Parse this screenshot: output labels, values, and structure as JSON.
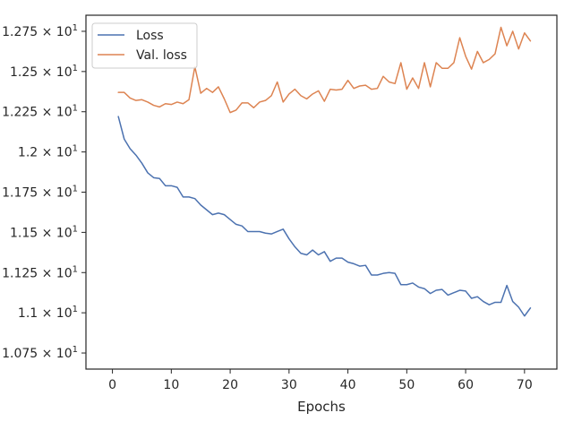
{
  "chart_data": {
    "type": "line",
    "title": "",
    "xlabel": "Epochs",
    "ylabel": "",
    "xlim": [
      -4.5,
      75.5
    ],
    "ylim": [
      10.65,
      12.85
    ],
    "grid": false,
    "legend_position": "top-left",
    "xticks": [
      0,
      10,
      20,
      30,
      40,
      50,
      60,
      70
    ],
    "xtick_labels": [
      "0",
      "10",
      "20",
      "30",
      "40",
      "50",
      "60",
      "70"
    ],
    "yticks": [
      10.75,
      11.0,
      11.25,
      11.5,
      11.75,
      12.0,
      12.25,
      12.5,
      12.75
    ],
    "ytick_labels": [
      "1.075 × 10^1",
      "1.1 × 10^1",
      "1.125 × 10^1",
      "1.15 × 10^1",
      "1.175 × 10^1",
      "1.2 × 10^1",
      "1.225 × 10^1",
      "1.25 × 10^1",
      "1.275 × 10^1"
    ],
    "x": [
      1,
      2,
      3,
      4,
      5,
      6,
      7,
      8,
      9,
      10,
      11,
      12,
      13,
      14,
      15,
      16,
      17,
      18,
      19,
      20,
      21,
      22,
      23,
      24,
      25,
      26,
      27,
      28,
      29,
      30,
      31,
      32,
      33,
      34,
      35,
      36,
      37,
      38,
      39,
      40,
      41,
      42,
      43,
      44,
      45,
      46,
      47,
      48,
      49,
      50,
      51,
      52,
      53,
      54,
      55,
      56,
      57,
      58,
      59,
      60,
      61,
      62,
      63,
      64,
      65,
      66,
      67,
      68,
      69,
      70,
      71
    ],
    "series": [
      {
        "name": "Loss",
        "color": "#4c72b0",
        "values": [
          12.22,
          12.08,
          12.02,
          11.98,
          11.93,
          11.87,
          11.84,
          11.835,
          11.79,
          11.79,
          11.78,
          11.72,
          11.72,
          11.71,
          11.67,
          11.64,
          11.61,
          11.62,
          11.61,
          11.58,
          11.55,
          11.54,
          11.505,
          11.505,
          11.505,
          11.495,
          11.49,
          11.505,
          11.52,
          11.46,
          11.41,
          11.37,
          11.36,
          11.39,
          11.36,
          11.38,
          11.32,
          11.34,
          11.34,
          11.315,
          11.305,
          11.29,
          11.295,
          11.235,
          11.235,
          11.245,
          11.25,
          11.245,
          11.175,
          11.175,
          11.185,
          11.16,
          11.15,
          11.12,
          11.14,
          11.145,
          11.11,
          11.125,
          11.14,
          11.135,
          11.09,
          11.1,
          11.07,
          11.05,
          11.065,
          11.065,
          11.17,
          11.07,
          11.035,
          10.98,
          11.03
        ]
      },
      {
        "name": "Val. loss",
        "color": "#dd8452",
        "values": [
          12.37,
          12.37,
          12.335,
          12.32,
          12.325,
          12.31,
          12.29,
          12.28,
          12.3,
          12.295,
          12.31,
          12.3,
          12.325,
          12.53,
          12.365,
          12.395,
          12.37,
          12.405,
          12.33,
          12.245,
          12.26,
          12.305,
          12.305,
          12.275,
          12.31,
          12.32,
          12.35,
          12.435,
          12.31,
          12.36,
          12.39,
          12.35,
          12.33,
          12.36,
          12.38,
          12.315,
          12.39,
          12.385,
          12.39,
          12.445,
          12.395,
          12.41,
          12.415,
          12.39,
          12.395,
          12.47,
          12.435,
          12.425,
          12.555,
          12.39,
          12.46,
          12.395,
          12.555,
          12.405,
          12.555,
          12.52,
          12.52,
          12.555,
          12.71,
          12.595,
          12.515,
          12.625,
          12.555,
          12.575,
          12.61,
          12.775,
          12.66,
          12.75,
          12.64,
          12.74,
          12.69
        ]
      }
    ]
  }
}
